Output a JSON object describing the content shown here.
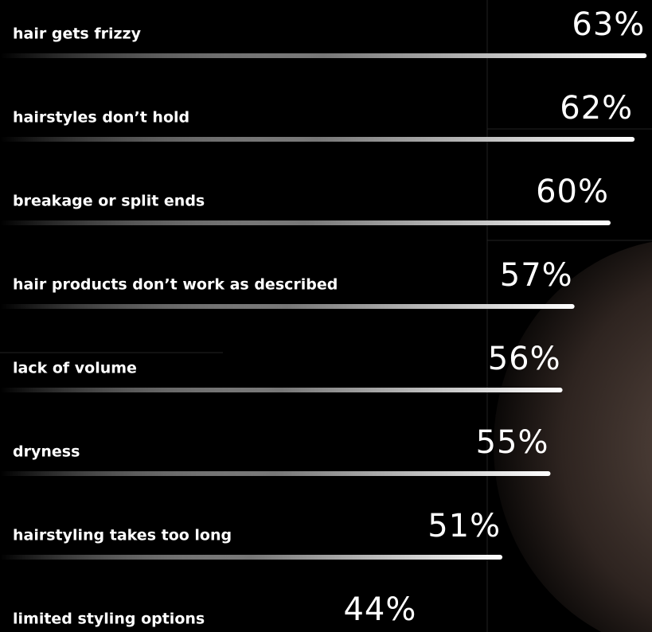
{
  "chart_data": {
    "type": "bar",
    "categories": [
      "hair gets frizzy",
      "hairstyles don’t hold",
      "breakage or split ends",
      "hair products don’t work as described",
      "lack of volume",
      "dryness",
      "hairstyling takes too long",
      "limited styling options"
    ],
    "values": [
      63,
      62,
      60,
      57,
      56,
      55,
      51,
      44
    ],
    "value_labels": [
      "63%",
      "62%",
      "60%",
      "57%",
      "56%",
      "55%",
      "51%",
      "44%"
    ],
    "color": "#ffffff"
  }
}
